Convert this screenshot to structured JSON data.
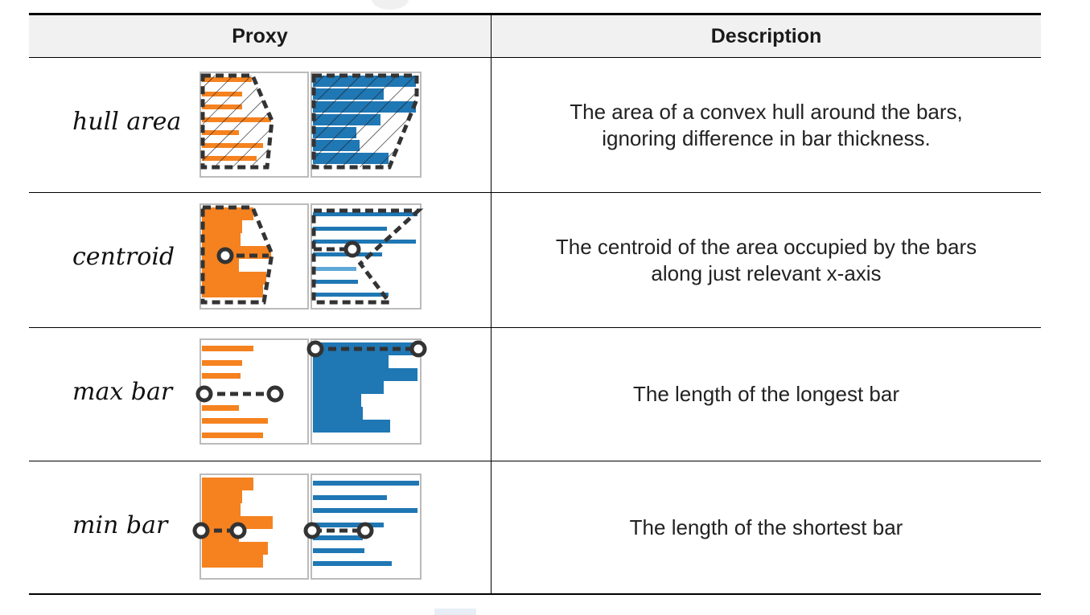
{
  "header": {
    "proxy": "Proxy",
    "description": "Description"
  },
  "rows": [
    {
      "proxy": "hull area",
      "description": "The area of a convex hull around the bars, ignoring difference in bar thickness.",
      "icon": "hull-area-icon"
    },
    {
      "proxy": "centroid",
      "description": "The centroid of the area occupied by the bars along just relevant x-axis",
      "icon": "centroid-icon"
    },
    {
      "proxy": "max bar",
      "description": "The length of the longest bar",
      "icon": "max-bar-icon"
    },
    {
      "proxy": "min bar",
      "description": "The length of the shortest bar",
      "icon": "min-bar-icon"
    }
  ],
  "colors": {
    "orange": "#f5821f",
    "blue": "#1f77b4",
    "light_blue": "#5ea8d8",
    "outline": "#333333",
    "frame": "#bbbbbb"
  }
}
